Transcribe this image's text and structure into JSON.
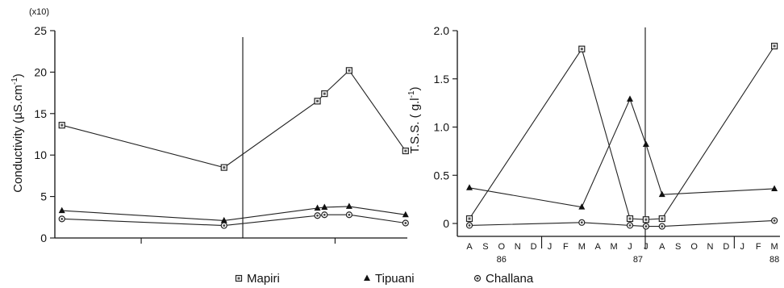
{
  "chart_data": [
    {
      "type": "line",
      "multiplier_label": "(x10)",
      "ylabel": "Conductivity  (µS.cm",
      "ylabel_sup": "-1",
      "ylabel_close": ")",
      "ylim": [
        0,
        25
      ],
      "yticks": [
        "0",
        "5",
        "10",
        "15",
        "20",
        "25"
      ],
      "xlim": [
        0,
        1
      ],
      "series": [
        {
          "name": "Mapiri",
          "marker": "square",
          "x": [
            0.02,
            0.48,
            0.745,
            0.765,
            0.835,
            0.995
          ],
          "y": [
            13.6,
            8.5,
            16.5,
            17.4,
            20.2,
            10.5
          ]
        },
        {
          "name": "Tipuani",
          "marker": "triangle",
          "x": [
            0.02,
            0.48,
            0.745,
            0.765,
            0.835,
            0.995
          ],
          "y": [
            3.3,
            2.1,
            3.6,
            3.7,
            3.8,
            2.8
          ]
        },
        {
          "name": "Challana",
          "marker": "circle",
          "x": [
            0.02,
            0.48,
            0.745,
            0.765,
            0.835,
            0.995
          ],
          "y": [
            2.3,
            1.5,
            2.7,
            2.8,
            2.8,
            1.8
          ]
        }
      ]
    },
    {
      "type": "line",
      "ylabel": "T.S.S.   ( g.l",
      "ylabel_sup": "-1",
      "ylabel_close": ")",
      "ylim": [
        0,
        2.0
      ],
      "yticks": [
        "0",
        "0.5",
        "1.0",
        "1.5",
        "2.0"
      ],
      "months": [
        "A",
        "S",
        "O",
        "N",
        "D",
        "J",
        "F",
        "M",
        "A",
        "M",
        "J",
        "J",
        "A",
        "S",
        "O",
        "N",
        "D",
        "J",
        "F",
        "M"
      ],
      "year_labels": [
        {
          "label": "86",
          "at": 2
        },
        {
          "label": "87",
          "at": 10.5
        },
        {
          "label": "88",
          "at": 19
        }
      ],
      "series": [
        {
          "name": "Mapiri",
          "marker": "square",
          "x": [
            0,
            7,
            10,
            11,
            12,
            19
          ],
          "y": [
            0.05,
            1.81,
            0.05,
            0.04,
            0.05,
            1.84
          ]
        },
        {
          "name": "Tipuani",
          "marker": "triangle",
          "x": [
            0,
            7,
            10,
            11,
            12,
            19
          ],
          "y": [
            0.37,
            0.17,
            1.29,
            0.82,
            0.3,
            0.36
          ]
        },
        {
          "name": "Challana",
          "marker": "circle",
          "x": [
            0,
            7,
            10,
            11,
            12,
            19
          ],
          "y": [
            -0.02,
            0.01,
            -0.02,
            -0.03,
            -0.03,
            0.03
          ]
        }
      ]
    }
  ],
  "legend": [
    {
      "label": "Mapiri",
      "marker": "square"
    },
    {
      "label": "Tipuani",
      "marker": "triangle"
    },
    {
      "label": "Challana",
      "marker": "circle"
    }
  ]
}
